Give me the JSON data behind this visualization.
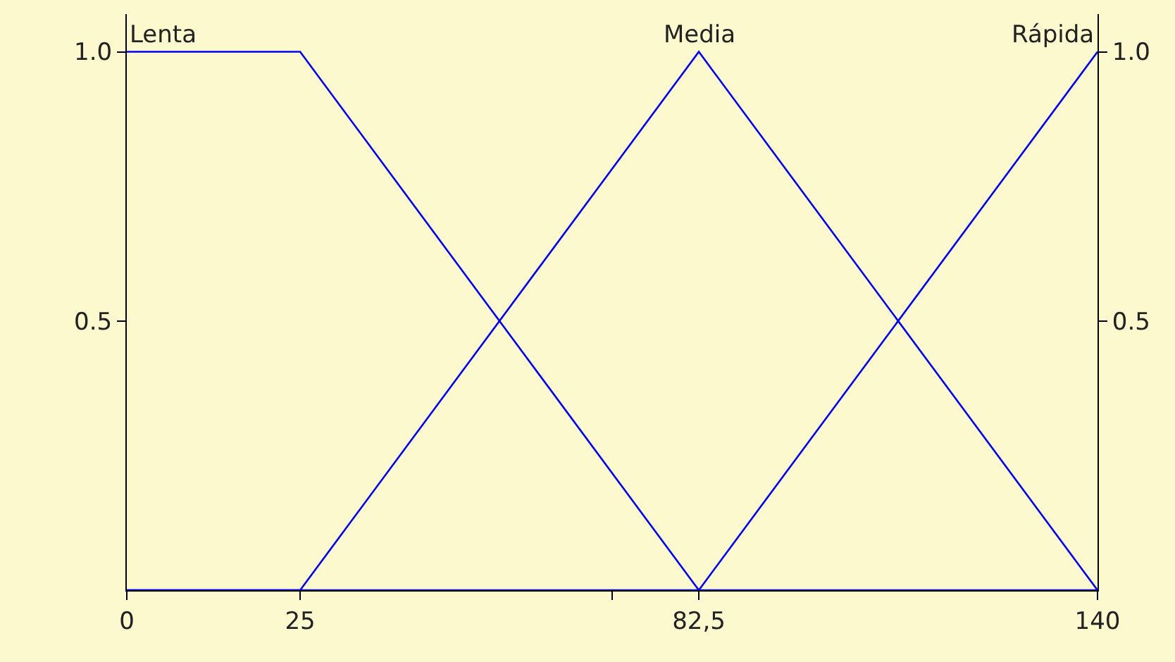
{
  "chart_data": {
    "type": "line",
    "xlim": [
      0,
      140
    ],
    "xticks": [
      0,
      25,
      {
        "value": 70,
        "label": null
      },
      {
        "value": 82.5,
        "label": "82,5"
      },
      140
    ],
    "ylim": [
      0,
      1.07
    ],
    "yticks": [
      0.5,
      {
        "value": 1,
        "label": "1.0"
      }
    ],
    "y2lim": [
      0,
      1.07
    ],
    "y2ticks": [
      0.5,
      {
        "value": 1,
        "label": "1.0"
      }
    ],
    "grid": false,
    "legend": false,
    "marker": "none",
    "line_style": "solid",
    "series": [
      {
        "name": "Lenta",
        "color": "#0000ff",
        "x": [
          0,
          25,
          82.5,
          140
        ],
        "values": [
          1,
          1,
          0,
          0
        ]
      },
      {
        "name": "Media",
        "color": "#0000ff",
        "x": [
          0,
          25,
          82.5,
          140
        ],
        "values": [
          0,
          0,
          1,
          0
        ]
      },
      {
        "name": "Rápida",
        "color": "#0000ff",
        "x": [
          0,
          82.5,
          140
        ],
        "values": [
          0,
          0,
          1
        ]
      }
    ]
  }
}
